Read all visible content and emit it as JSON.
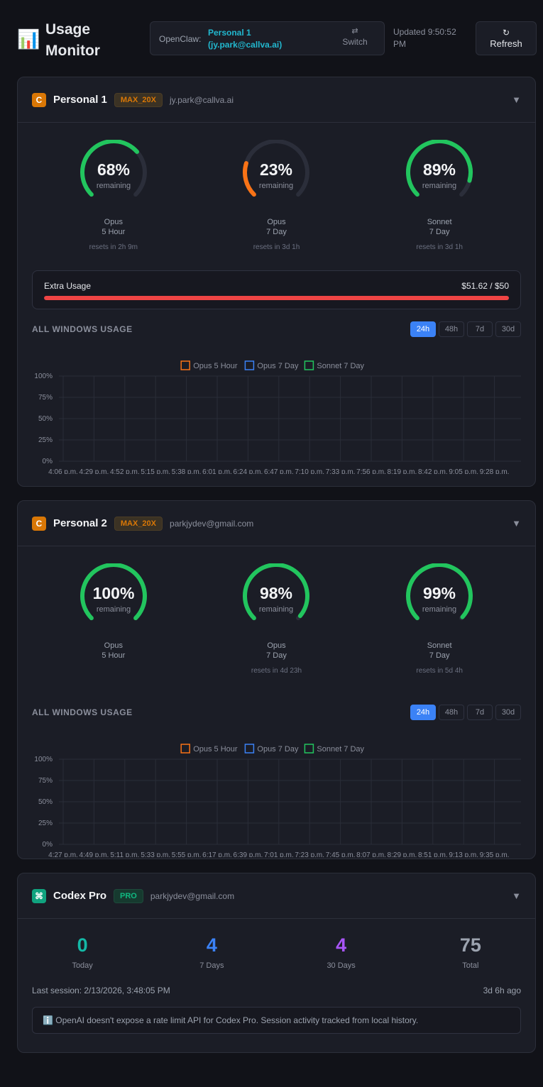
{
  "header": {
    "icon": "📊",
    "title": "Usage Monitor",
    "openclaw_label": "OpenClaw:",
    "account": "Personal 1 (jy.park@callva.ai)",
    "switch_icon": "⇄",
    "switch": "Switch",
    "updated": "Updated 9:50:52 PM",
    "refresh_icon": "↻",
    "refresh": "Refresh"
  },
  "accounts": [
    {
      "badge": "C",
      "name": "Personal 1",
      "plan": "MAX_20X",
      "email": "jy.park@callva.ai",
      "toggle": "▼",
      "gauges": [
        {
          "value": 68,
          "value_label": "68%",
          "sub": "remaining",
          "model": "Opus",
          "window": "5 Hour",
          "reset": "resets in 2h 9m",
          "color": "#22c55e"
        },
        {
          "value": 23,
          "value_label": "23%",
          "sub": "remaining",
          "model": "Opus",
          "window": "7 Day",
          "reset": "resets in 3d 1h",
          "color": "#f97316"
        },
        {
          "value": 89,
          "value_label": "89%",
          "sub": "remaining",
          "model": "Sonnet",
          "window": "7 Day",
          "reset": "resets in 3d 1h",
          "color": "#22c55e"
        }
      ],
      "extra_usage": {
        "label": "Extra Usage",
        "amount": "$51.62 / $50",
        "used": 51.62,
        "limit": 50,
        "color": "#ef4444"
      },
      "chart_data": {
        "type": "line",
        "title": "ALL WINDOWS USAGE",
        "ranges": [
          "24h",
          "48h",
          "7d",
          "30d"
        ],
        "active_range": 0,
        "categories": [
          "4:06 p.m.",
          "4:29 p.m.",
          "4:52 p.m.",
          "5:15 p.m.",
          "5:38 p.m.",
          "6:01 p.m.",
          "6:24 p.m.",
          "6:47 p.m.",
          "7:10 p.m.",
          "7:33 p.m.",
          "7:56 p.m.",
          "8:19 p.m.",
          "8:42 p.m.",
          "9:05 p.m.",
          "9:28 p.m."
        ],
        "series": [
          {
            "name": "Opus 5 Hour",
            "color": "#f97316",
            "values": [
              null,
              null,
              null,
              null,
              null,
              null,
              null,
              null,
              null,
              null,
              null,
              null,
              null,
              null,
              null
            ]
          },
          {
            "name": "Opus 7 Day",
            "color": "#3b82f6",
            "values": [
              null,
              null,
              null,
              null,
              null,
              null,
              null,
              null,
              null,
              null,
              null,
              null,
              null,
              null,
              null
            ]
          },
          {
            "name": "Sonnet 7 Day",
            "color": "#22c55e",
            "values": [
              null,
              null,
              null,
              null,
              null,
              null,
              null,
              null,
              null,
              null,
              null,
              null,
              null,
              null,
              null
            ]
          }
        ],
        "ylim": [
          0,
          100
        ],
        "yticks": [
          {
            "value": 0,
            "label": "0%"
          },
          {
            "value": 25,
            "label": "25%"
          },
          {
            "value": 50,
            "label": "50%"
          },
          {
            "value": 75,
            "label": "75%"
          },
          {
            "value": 100,
            "label": "100%"
          }
        ],
        "grid": true
      }
    },
    {
      "badge": "C",
      "name": "Personal 2",
      "plan": "MAX_20X",
      "email": "parkjydev@gmail.com",
      "toggle": "▼",
      "gauges": [
        {
          "value": 100,
          "value_label": "100%",
          "sub": "remaining",
          "model": "Opus",
          "window": "5 Hour",
          "color": "#22c55e"
        },
        {
          "value": 98,
          "value_label": "98%",
          "sub": "remaining",
          "model": "Opus",
          "window": "7 Day",
          "reset": "resets in 4d 23h",
          "color": "#22c55e"
        },
        {
          "value": 99,
          "value_label": "99%",
          "sub": "remaining",
          "model": "Sonnet",
          "window": "7 Day",
          "reset": "resets in 5d 4h",
          "color": "#22c55e"
        }
      ],
      "chart_data": {
        "type": "line",
        "title": "ALL WINDOWS USAGE",
        "ranges": [
          "24h",
          "48h",
          "7d",
          "30d"
        ],
        "active_range": 0,
        "categories": [
          "4:27 p.m.",
          "4:49 p.m.",
          "5:11 p.m.",
          "5:33 p.m.",
          "5:55 p.m.",
          "6:17 p.m.",
          "6:39 p.m.",
          "7:01 p.m.",
          "7:23 p.m.",
          "7:45 p.m.",
          "8:07 p.m.",
          "8:29 p.m.",
          "8:51 p.m.",
          "9:13 p.m.",
          "9:35 p.m."
        ],
        "series": [
          {
            "name": "Opus 5 Hour",
            "color": "#f97316",
            "values": [
              null,
              null,
              null,
              null,
              null,
              null,
              null,
              null,
              null,
              null,
              null,
              null,
              null,
              null,
              null
            ]
          },
          {
            "name": "Opus 7 Day",
            "color": "#3b82f6",
            "values": [
              null,
              null,
              null,
              null,
              null,
              null,
              null,
              null,
              null,
              null,
              null,
              null,
              null,
              null,
              null
            ]
          },
          {
            "name": "Sonnet 7 Day",
            "color": "#22c55e",
            "values": [
              null,
              null,
              null,
              null,
              null,
              null,
              null,
              null,
              null,
              null,
              null,
              null,
              null,
              null,
              null
            ]
          }
        ],
        "ylim": [
          0,
          100
        ],
        "yticks": [
          {
            "value": 0,
            "label": "0%"
          },
          {
            "value": 25,
            "label": "25%"
          },
          {
            "value": 50,
            "label": "50%"
          },
          {
            "value": 75,
            "label": "75%"
          },
          {
            "value": 100,
            "label": "100%"
          }
        ],
        "grid": true
      }
    }
  ],
  "codex": {
    "badge": "⌘",
    "name": "Codex Pro",
    "plan": "PRO",
    "email": "parkjydev@gmail.com",
    "toggle": "▼",
    "stats": [
      {
        "value": 0,
        "label": "Today",
        "color": "#14b8a6"
      },
      {
        "value": 4,
        "label": "7 Days",
        "color": "#3b82f6"
      },
      {
        "value": 4,
        "label": "30 Days",
        "color": "#a855f7"
      },
      {
        "value": 75,
        "label": "Total",
        "color": "#9ca3af"
      }
    ],
    "last_session": "Last session: 2/13/2026, 3:48:05 PM",
    "ago": "3d 6h ago",
    "note": "ℹ️ OpenAI doesn't expose a rate limit API for Codex Pro. Session activity tracked from local history."
  }
}
